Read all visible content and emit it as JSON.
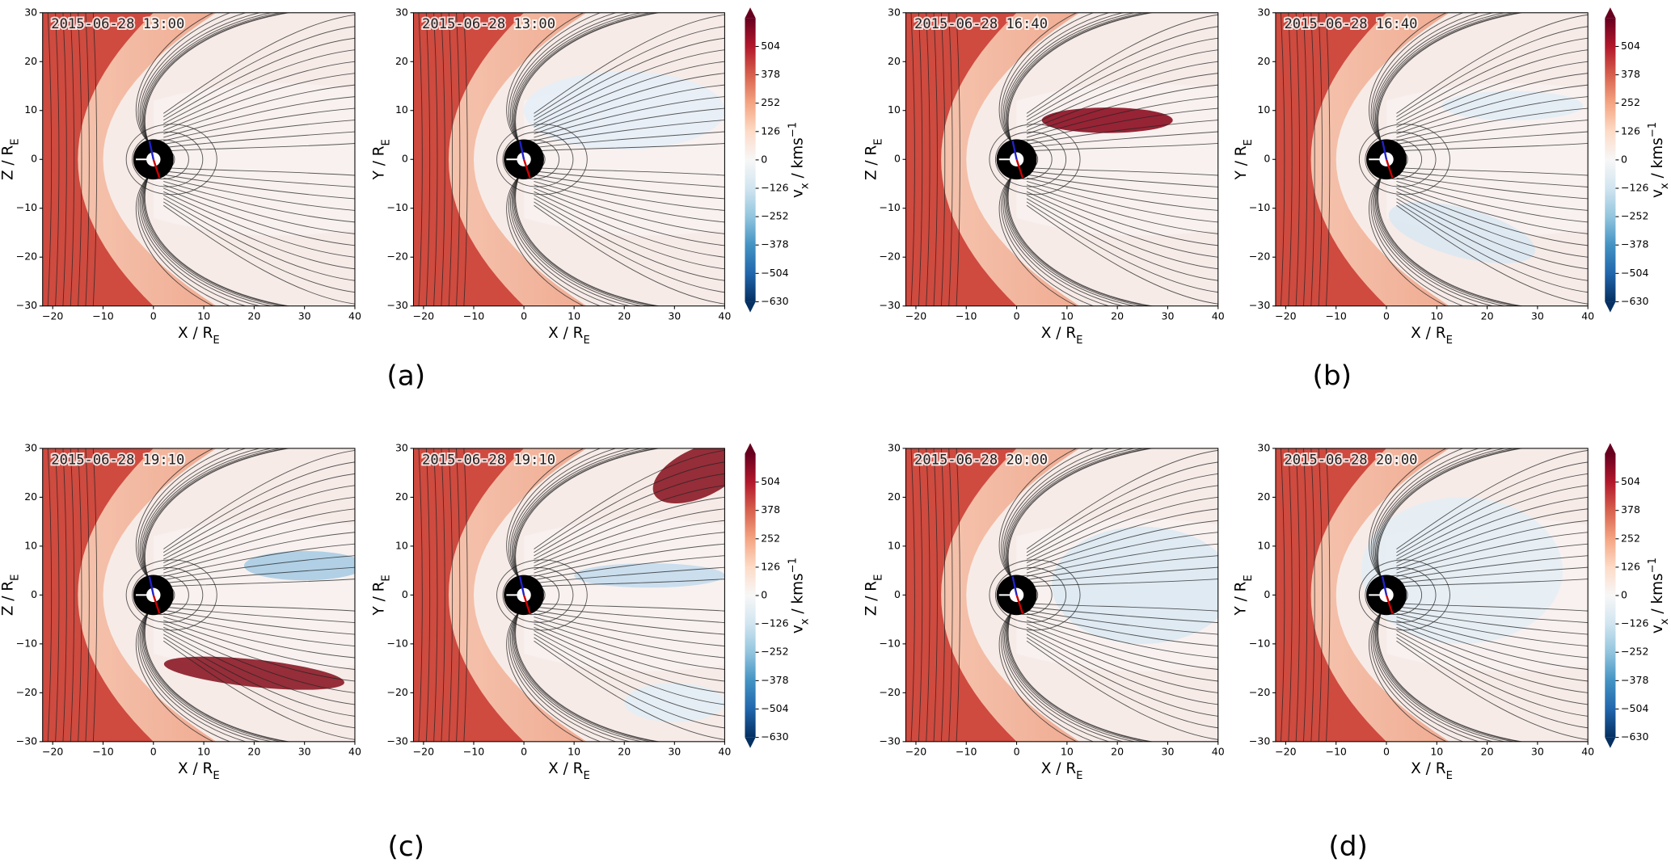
{
  "chart_data": [
    {
      "type": "field",
      "annotation": "2015-06-28 13:00",
      "xlabel": "X / R",
      "xlabel_sub": "E",
      "ylabel": "Z / R",
      "ylabel_sub": "E",
      "xlim": [
        -22,
        40
      ],
      "ylim": [
        -30,
        30
      ],
      "xticks": [
        {
          "value": -20,
          "label": "−20"
        },
        {
          "value": -10,
          "label": "−10"
        },
        0,
        10,
        20,
        30,
        40
      ],
      "yticks": [
        {
          "value": -30,
          "label": "−30"
        },
        {
          "value": -20,
          "label": "−20"
        },
        {
          "value": -10,
          "label": "−10"
        },
        0,
        10,
        20,
        30
      ]
    },
    {
      "type": "field",
      "annotation": "2015-06-28 13:00",
      "xlabel": "X / R",
      "xlabel_sub": "E",
      "ylabel": "Y / R",
      "ylabel_sub": "E",
      "xlim": [
        -22,
        40
      ],
      "ylim": [
        -30,
        30
      ],
      "xticks": [
        {
          "value": -20,
          "label": "−20"
        },
        {
          "value": -10,
          "label": "−10"
        },
        0,
        10,
        20,
        30,
        40
      ],
      "yticks": [
        {
          "value": -30,
          "label": "−30"
        },
        {
          "value": -20,
          "label": "−20"
        },
        {
          "value": -10,
          "label": "−10"
        },
        0,
        10,
        20,
        30
      ]
    },
    {
      "type": "field",
      "annotation": "2015-06-28 16:40",
      "xlabel": "X / R",
      "xlabel_sub": "E",
      "ylabel": "Z / R",
      "ylabel_sub": "E",
      "xlim": [
        -22,
        40
      ],
      "ylim": [
        -30,
        30
      ],
      "xticks": [
        {
          "value": -20,
          "label": "−20"
        },
        {
          "value": -10,
          "label": "−10"
        },
        0,
        10,
        20,
        30,
        40
      ],
      "yticks": [
        {
          "value": -30,
          "label": "−30"
        },
        {
          "value": -20,
          "label": "−20"
        },
        {
          "value": -10,
          "label": "−10"
        },
        0,
        10,
        20,
        30
      ]
    },
    {
      "type": "field",
      "annotation": "2015-06-28 16:40",
      "xlabel": "X / R",
      "xlabel_sub": "E",
      "ylabel": "Y / R",
      "ylabel_sub": "E",
      "xlim": [
        -22,
        40
      ],
      "ylim": [
        -30,
        30
      ],
      "xticks": [
        {
          "value": -20,
          "label": "−20"
        },
        {
          "value": -10,
          "label": "−10"
        },
        0,
        10,
        20,
        30,
        40
      ],
      "yticks": [
        {
          "value": -30,
          "label": "−30"
        },
        {
          "value": -20,
          "label": "−20"
        },
        {
          "value": -10,
          "label": "−10"
        },
        0,
        10,
        20,
        30
      ]
    },
    {
      "type": "field",
      "annotation": "2015-06-28 19:10",
      "xlabel": "X / R",
      "xlabel_sub": "E",
      "ylabel": "Z / R",
      "ylabel_sub": "E",
      "xlim": [
        -22,
        40
      ],
      "ylim": [
        -30,
        30
      ],
      "xticks": [
        {
          "value": -20,
          "label": "−20"
        },
        {
          "value": -10,
          "label": "−10"
        },
        0,
        10,
        20,
        30,
        40
      ],
      "yticks": [
        {
          "value": -30,
          "label": "−30"
        },
        {
          "value": -20,
          "label": "−20"
        },
        {
          "value": -10,
          "label": "−10"
        },
        0,
        10,
        20,
        30
      ]
    },
    {
      "type": "field",
      "annotation": "2015-06-28 19:10",
      "xlabel": "X / R",
      "xlabel_sub": "E",
      "ylabel": "Y / R",
      "ylabel_sub": "E",
      "xlim": [
        -22,
        40
      ],
      "ylim": [
        -30,
        30
      ],
      "xticks": [
        {
          "value": -20,
          "label": "−20"
        },
        {
          "value": -10,
          "label": "−10"
        },
        0,
        10,
        20,
        30,
        40
      ],
      "yticks": [
        {
          "value": -30,
          "label": "−30"
        },
        {
          "value": -20,
          "label": "−20"
        },
        {
          "value": -10,
          "label": "−10"
        },
        0,
        10,
        20,
        30
      ]
    },
    {
      "type": "field",
      "annotation": "2015-06-28 20:00",
      "xlabel": "X / R",
      "xlabel_sub": "E",
      "ylabel": "Z / R",
      "ylabel_sub": "E",
      "xlim": [
        -22,
        40
      ],
      "ylim": [
        -30,
        30
      ],
      "xticks": [
        {
          "value": -20,
          "label": "−20"
        },
        {
          "value": -10,
          "label": "−10"
        },
        0,
        10,
        20,
        30,
        40
      ],
      "yticks": [
        {
          "value": -30,
          "label": "−30"
        },
        {
          "value": -20,
          "label": "−20"
        },
        {
          "value": -10,
          "label": "−10"
        },
        0,
        10,
        20,
        30
      ]
    },
    {
      "type": "field",
      "annotation": "2015-06-28 20:00",
      "xlabel": "X / R",
      "xlabel_sub": "E",
      "ylabel": "Y / R",
      "ylabel_sub": "E",
      "xlim": [
        -22,
        40
      ],
      "ylim": [
        -30,
        30
      ],
      "xticks": [
        {
          "value": -20,
          "label": "−20"
        },
        {
          "value": -10,
          "label": "−10"
        },
        0,
        10,
        20,
        30,
        40
      ],
      "yticks": [
        {
          "value": -30,
          "label": "−30"
        },
        {
          "value": -20,
          "label": "−20"
        },
        {
          "value": -10,
          "label": "−10"
        },
        0,
        10,
        20,
        30
      ]
    }
  ],
  "colorbars": [
    {
      "label": "v",
      "label_sub": "x",
      "label_unit": " / kms",
      "label_sup": "−1",
      "clim": [
        -630,
        630
      ],
      "ticks": [
        504,
        378,
        252,
        126,
        0,
        {
          "value": -126,
          "label": "−126"
        },
        {
          "value": -252,
          "label": "−252"
        },
        {
          "value": -378,
          "label": "−378"
        },
        {
          "value": -504,
          "label": "−504"
        },
        {
          "value": -630,
          "label": "−630"
        }
      ]
    },
    {
      "label": "v",
      "label_sub": "x",
      "label_unit": " / kms",
      "label_sup": "−1",
      "clim": [
        -630,
        630
      ],
      "ticks": [
        504,
        378,
        252,
        126,
        0,
        {
          "value": -126,
          "label": "−126"
        },
        {
          "value": -252,
          "label": "−252"
        },
        {
          "value": -378,
          "label": "−378"
        },
        {
          "value": -504,
          "label": "−504"
        },
        {
          "value": -630,
          "label": "−630"
        }
      ]
    },
    {
      "label": "v",
      "label_sub": "x",
      "label_unit": " / kms",
      "label_sup": "−1",
      "clim": [
        -630,
        630
      ],
      "ticks": [
        504,
        378,
        252,
        126,
        0,
        {
          "value": -126,
          "label": "−126"
        },
        {
          "value": -252,
          "label": "−252"
        },
        {
          "value": -378,
          "label": "−378"
        },
        {
          "value": -504,
          "label": "−504"
        },
        {
          "value": -630,
          "label": "−630"
        }
      ]
    },
    {
      "label": "v",
      "label_sub": "x",
      "label_unit": " / kms",
      "label_sup": "−1",
      "clim": [
        -630,
        630
      ],
      "ticks": [
        504,
        378,
        252,
        126,
        0,
        {
          "value": -126,
          "label": "−126"
        },
        {
          "value": -252,
          "label": "−252"
        },
        {
          "value": -378,
          "label": "−378"
        },
        {
          "value": -504,
          "label": "−504"
        },
        {
          "value": -630,
          "label": "−630"
        }
      ]
    }
  ],
  "panel_labels": [
    "(a)",
    "(b)",
    "(c)",
    "(d)"
  ]
}
